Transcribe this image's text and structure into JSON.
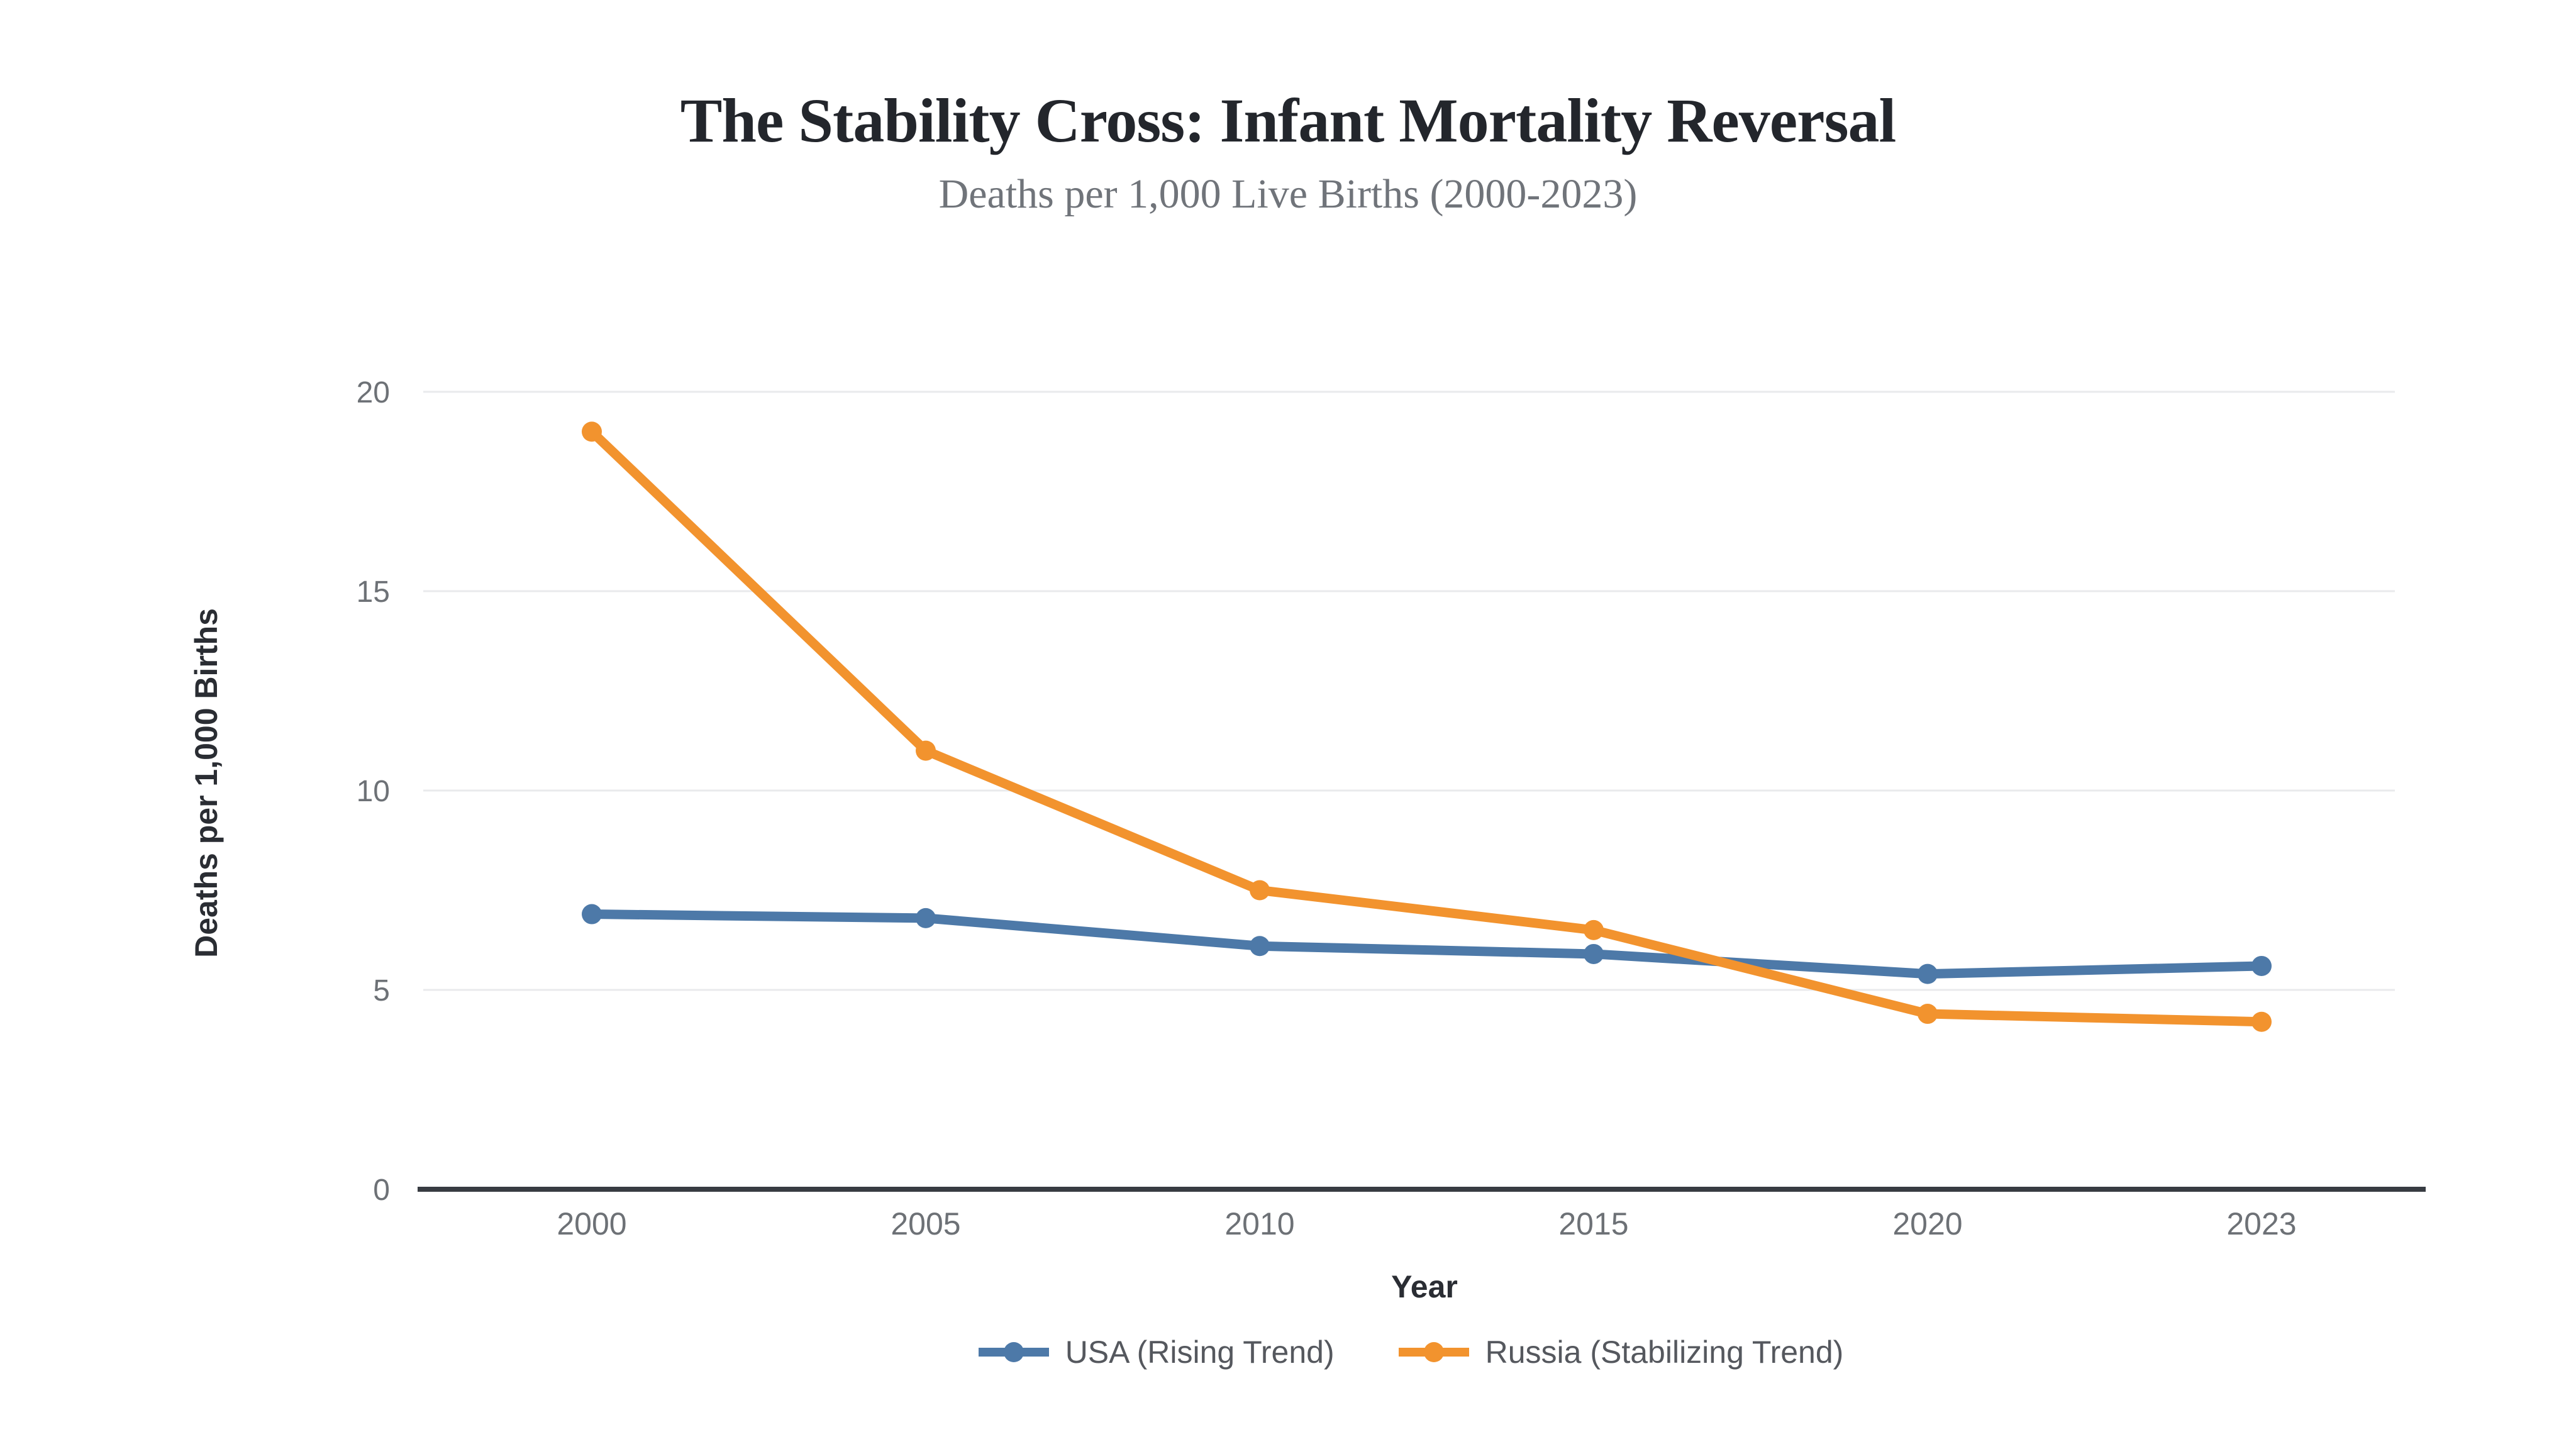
{
  "chart_data": {
    "type": "line",
    "title": "The Stability Cross: Infant Mortality Reversal",
    "subtitle": "Deaths per 1,000 Live Births (2000-2023)",
    "xlabel": "Year",
    "ylabel": "Deaths per 1,000 Births",
    "categories": [
      "2000",
      "2005",
      "2010",
      "2015",
      "2020",
      "2023"
    ],
    "series": [
      {
        "name": "USA (Rising Trend)",
        "color": "#4d79a8",
        "values": [
          6.9,
          6.8,
          6.1,
          5.9,
          5.4,
          5.6
        ]
      },
      {
        "name": "Russia (Stabilizing Trend)",
        "color": "#f2932e",
        "values": [
          19.0,
          11.0,
          7.5,
          6.5,
          4.4,
          4.2
        ]
      }
    ],
    "yticks": [
      0,
      5,
      10,
      15,
      20
    ],
    "ylim": [
      0,
      20
    ],
    "grid": true,
    "legend_position": "bottom-center"
  },
  "theme": {
    "background": "#ffffff",
    "grid_color": "#e9eaec",
    "axis_line_color": "#383c42",
    "tick_label_color": "#6d7176",
    "title_color": "#23262c",
    "subtitle_color": "#70747a",
    "legend_text_color": "#55585e"
  }
}
